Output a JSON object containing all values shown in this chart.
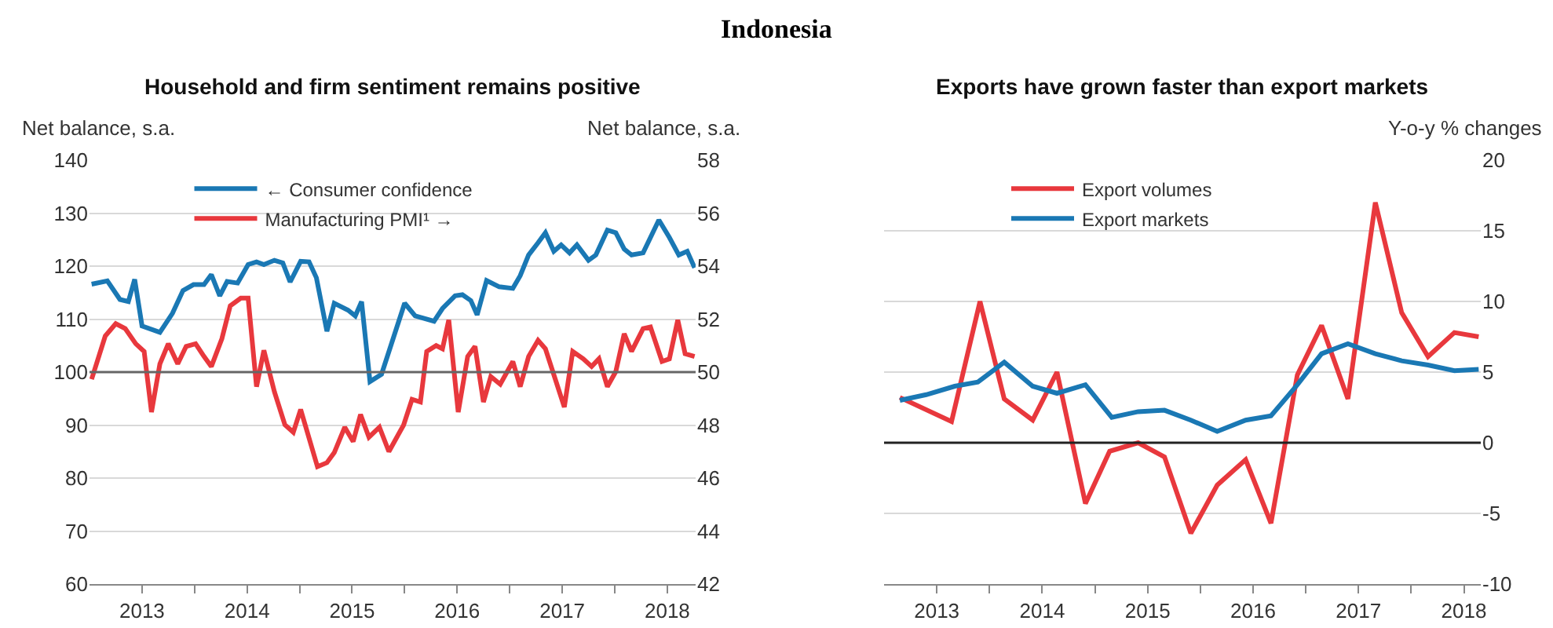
{
  "chart_data": [
    {
      "type": "line",
      "title": "Indonesia",
      "subtitle": "Household and firm sentiment remains positive",
      "ylabel": "Net balance, s.a.",
      "y2label": "Net balance, s.a.",
      "xlim": [
        2013.0,
        2018.77
      ],
      "xticks": [
        {
          "value": 2013.5,
          "label": "2013"
        },
        {
          "value": 2014,
          "label": null
        },
        {
          "value": 2014.5,
          "label": "2014"
        },
        {
          "value": 2015,
          "label": null
        },
        {
          "value": 2015.5,
          "label": "2015"
        },
        {
          "value": 2016,
          "label": null
        },
        {
          "value": 2016.5,
          "label": "2016"
        },
        {
          "value": 2017,
          "label": null
        },
        {
          "value": 2017.5,
          "label": "2017"
        },
        {
          "value": 2018,
          "label": null
        },
        {
          "value": 2018.5,
          "label": "2018"
        }
      ],
      "ylim": [
        60,
        140
      ],
      "yticks": [
        60,
        70,
        80,
        90,
        100,
        110,
        120,
        130,
        140
      ],
      "y2lim": [
        42,
        58
      ],
      "y2ticks": [
        42,
        44,
        46,
        48,
        50,
        52,
        54,
        56,
        58
      ],
      "grid": "y",
      "legend": "top",
      "ref_lines": [
        {
          "axis": "y",
          "value": 100,
          "color": "#666666"
        }
      ],
      "series": [
        {
          "name": "← Consumer confidence",
          "color": "#1a78b4",
          "x": [
            2013.02,
            2013.17,
            2013.29,
            2013.37,
            2013.43,
            2013.5,
            2013.67,
            2013.79,
            2013.89,
            2013.99,
            2014.09,
            2014.16,
            2014.24,
            2014.31,
            2014.41,
            2014.51,
            2014.59,
            2014.66,
            2014.76,
            2014.84,
            2014.91,
            2015.01,
            2015.09,
            2015.16,
            2015.26,
            2015.33,
            2015.46,
            2015.53,
            2015.59,
            2015.67,
            2015.78,
            2016.0,
            2016.1,
            2016.28,
            2016.36,
            2016.48,
            2016.55,
            2016.63,
            2016.69,
            2016.78,
            2016.9,
            2017.03,
            2017.1,
            2017.18,
            2017.27,
            2017.34,
            2017.42,
            2017.49,
            2017.57,
            2017.64,
            2017.75,
            2017.82,
            2017.93,
            2018.01,
            2018.09,
            2018.16,
            2018.27,
            2018.42,
            2018.52,
            2018.61,
            2018.69,
            2018.76
          ],
          "values": [
            116.6,
            117.2,
            113.7,
            113.3,
            117.5,
            108.7,
            107.5,
            111.1,
            115.4,
            116.5,
            116.5,
            118.4,
            114.4,
            117.1,
            116.8,
            120.3,
            120.8,
            120.3,
            121.1,
            120.6,
            117,
            120.9,
            120.8,
            117.8,
            107.7,
            113,
            111.7,
            110.6,
            113.3,
            98.2,
            99.6,
            113,
            110.6,
            109.6,
            112,
            114.4,
            114.6,
            113.5,
            110.8,
            117.3,
            116.1,
            115.8,
            118.2,
            122.1,
            124.4,
            126.3,
            122.8,
            124,
            122.5,
            124,
            121.1,
            122.1,
            126.8,
            126.3,
            123.2,
            122.1,
            122.5,
            128.7,
            125.4,
            122.1,
            122.8,
            119.7
          ]
        },
        {
          "name": "Manufacturing PMI¹ →",
          "color": "#e8383d",
          "axis": "y2",
          "x": [
            2013.02,
            2013.15,
            2013.25,
            2013.34,
            2013.44,
            2013.52,
            2013.59,
            2013.67,
            2013.75,
            2013.84,
            2013.92,
            2014.01,
            2014.09,
            2014.16,
            2014.26,
            2014.34,
            2014.44,
            2014.51,
            2014.59,
            2014.66,
            2014.76,
            2014.86,
            2014.94,
            2015.01,
            2015.17,
            2015.26,
            2015.33,
            2015.43,
            2015.51,
            2015.58,
            2015.66,
            2015.76,
            2015.85,
            2015.99,
            2016.07,
            2016.15,
            2016.21,
            2016.3,
            2016.36,
            2016.42,
            2016.51,
            2016.6,
            2016.67,
            2016.75,
            2016.82,
            2016.91,
            2017.03,
            2017.1,
            2017.18,
            2017.27,
            2017.34,
            2017.52,
            2017.6,
            2017.7,
            2017.78,
            2017.85,
            2017.93,
            2018.01,
            2018.09,
            2018.16,
            2018.27,
            2018.34,
            2018.45,
            2018.52,
            2018.6,
            2018.67,
            2018.76
          ],
          "values": [
            49.73,
            51.36,
            51.83,
            51.64,
            51.07,
            50.78,
            48.49,
            50.31,
            51.07,
            50.31,
            50.97,
            51.07,
            50.59,
            50.21,
            51.26,
            52.5,
            52.79,
            52.79,
            49.45,
            50.82,
            49.26,
            48.01,
            47.73,
            48.59,
            46.43,
            46.58,
            46.96,
            47.92,
            47.38,
            48.4,
            47.54,
            47.92,
            47.0,
            48.0,
            48.97,
            48.87,
            50.78,
            51.0,
            50.88,
            51.97,
            48.49,
            50.59,
            50.97,
            48.87,
            49.83,
            49.54,
            50.4,
            49.45,
            50.59,
            51.2,
            50.88,
            48.68,
            50.78,
            50.5,
            50.21,
            50.5,
            49.45,
            50.02,
            51.45,
            50.78,
            51.64,
            51.7,
            50.4,
            50.5,
            51.97,
            50.69,
            50.59
          ]
        }
      ]
    },
    {
      "type": "line",
      "subtitle": "Exports have grown faster than export markets",
      "ylabel": "Y-o-y % changes",
      "xlim": [
        2013.0,
        2018.66
      ],
      "xticks": [
        {
          "value": 2013.5,
          "label": "2013"
        },
        {
          "value": 2014,
          "label": null
        },
        {
          "value": 2014.5,
          "label": "2014"
        },
        {
          "value": 2015,
          "label": null
        },
        {
          "value": 2015.5,
          "label": "2015"
        },
        {
          "value": 2016,
          "label": null
        },
        {
          "value": 2016.5,
          "label": "2016"
        },
        {
          "value": 2017,
          "label": null
        },
        {
          "value": 2017.5,
          "label": "2017"
        },
        {
          "value": 2018,
          "label": null
        },
        {
          "value": 2018.5,
          "label": "2018"
        }
      ],
      "ylim": [
        -10,
        20
      ],
      "yticks": [
        -10,
        -5,
        0,
        5,
        10,
        15,
        20
      ],
      "grid": "y",
      "legend": "top left",
      "ref_lines": [
        {
          "axis": "y",
          "value": 0,
          "color": "#222222"
        }
      ],
      "series": [
        {
          "name": "Export volumes",
          "color": "#e8383d",
          "x": [
            2013.15,
            2013.64,
            2013.91,
            2014.14,
            2014.41,
            2014.64,
            2014.91,
            2015.14,
            2015.41,
            2015.66,
            2015.91,
            2016.16,
            2016.43,
            2016.67,
            2016.92,
            2017.15,
            2017.4,
            2017.66,
            2017.91,
            2018.16,
            2018.41,
            2018.64
          ],
          "values": [
            3.2,
            1.5,
            10.0,
            3.1,
            1.6,
            5.0,
            -4.3,
            -0.6,
            0.0,
            -1.0,
            -6.4,
            -3.0,
            -1.2,
            -5.7,
            4.8,
            8.3,
            3.1,
            17.0,
            9.2,
            6.1,
            7.8,
            7.5
          ]
        },
        {
          "name": "Export markets",
          "color": "#1a78b4",
          "x": [
            2013.15,
            2013.4,
            2013.67,
            2013.89,
            2014.14,
            2014.41,
            2014.64,
            2014.91,
            2015.16,
            2015.41,
            2015.66,
            2015.91,
            2016.16,
            2016.43,
            2016.67,
            2016.92,
            2017.15,
            2017.4,
            2017.66,
            2017.91,
            2018.16,
            2018.41,
            2018.64
          ],
          "values": [
            3.0,
            3.4,
            4.0,
            4.3,
            5.7,
            4.0,
            3.5,
            4.1,
            1.8,
            2.2,
            2.3,
            1.6,
            0.8,
            1.6,
            1.9,
            4.1,
            6.3,
            7.0,
            6.3,
            5.8,
            5.5,
            5.1,
            5.2
          ]
        }
      ]
    }
  ]
}
